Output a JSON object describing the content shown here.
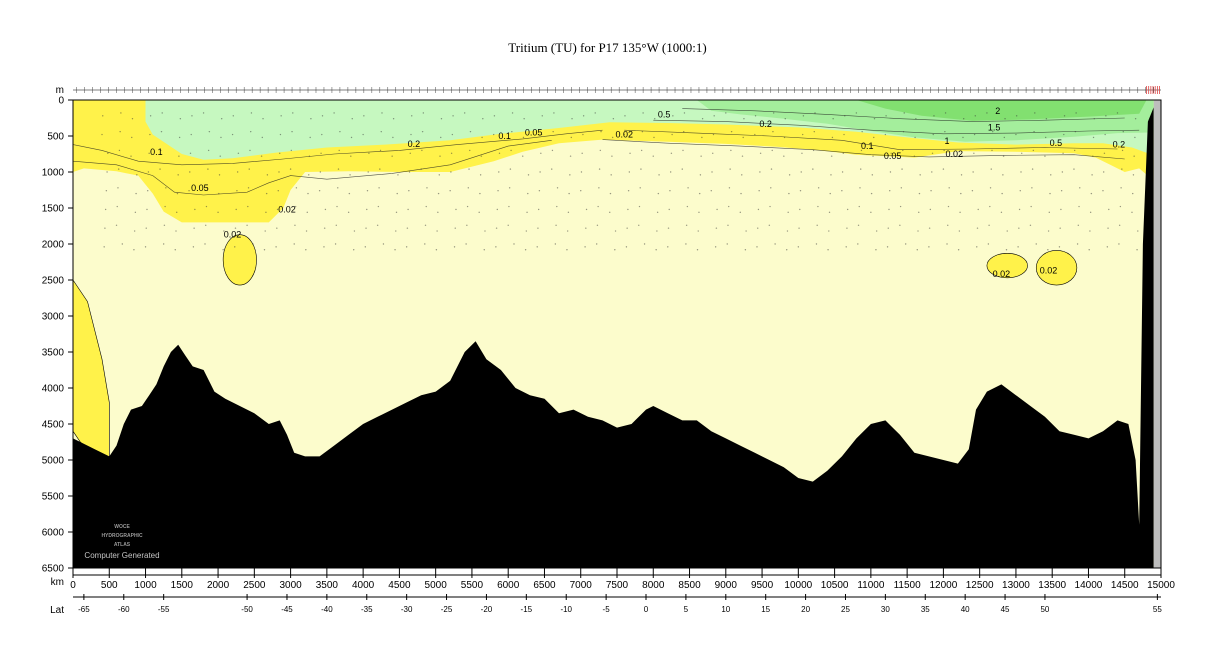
{
  "chart_data": {
    "type": "heatmap",
    "title": "Tritium (TU) for P17 135°W (1000:1)",
    "y_unit": "m",
    "x_unit": "km",
    "lat_unit": "Lat",
    "ylim": [
      6500,
      0
    ],
    "xlim": [
      0,
      15000
    ],
    "y_ticks": [
      0,
      500,
      1000,
      1500,
      2000,
      2500,
      3000,
      3500,
      4000,
      4500,
      5000,
      5500,
      6000,
      6500
    ],
    "x_ticks": [
      0,
      500,
      1000,
      1500,
      2000,
      2500,
      3000,
      3500,
      4000,
      4500,
      5000,
      5500,
      6000,
      6500,
      7000,
      7500,
      8000,
      8500,
      9000,
      9500,
      10000,
      10500,
      11000,
      11500,
      12000,
      12500,
      13000,
      13500,
      14000,
      14500,
      15000
    ],
    "lat_ticks": [
      {
        "label": "-65",
        "km": 150
      },
      {
        "label": "-60",
        "km": 700
      },
      {
        "label": "-55",
        "km": 1250
      },
      {
        "label": "-50",
        "km": 2400
      },
      {
        "label": "-45",
        "km": 2950
      },
      {
        "label": "-40",
        "km": 3500
      },
      {
        "label": "-35",
        "km": 4050
      },
      {
        "label": "-30",
        "km": 4600
      },
      {
        "label": "-25",
        "km": 5150
      },
      {
        "label": "-20",
        "km": 5700
      },
      {
        "label": "-15",
        "km": 6250
      },
      {
        "label": "-10",
        "km": 6800
      },
      {
        "label": "-5",
        "km": 7350
      },
      {
        "label": "0",
        "km": 7900
      },
      {
        "label": "5",
        "km": 8450
      },
      {
        "label": "10",
        "km": 9000
      },
      {
        "label": "15",
        "km": 9550
      },
      {
        "label": "20",
        "km": 10100
      },
      {
        "label": "25",
        "km": 10650
      },
      {
        "label": "30",
        "km": 11200
      },
      {
        "label": "35",
        "km": 11750
      },
      {
        "label": "40",
        "km": 12300
      },
      {
        "label": "45",
        "km": 12850
      },
      {
        "label": "50",
        "km": 13400
      },
      {
        "label": "55",
        "km": 14950
      }
    ],
    "contour_levels": [
      0.02,
      0.05,
      0.1,
      0.2,
      0.5,
      1,
      1.5,
      2
    ],
    "contour_labels": [
      {
        "text": "0.5",
        "km": 8150,
        "m": 200
      },
      {
        "text": "2",
        "km": 12750,
        "m": 150
      },
      {
        "text": "0.2",
        "km": 9550,
        "m": 330
      },
      {
        "text": "1.5",
        "km": 12700,
        "m": 380
      },
      {
        "text": "0.1",
        "km": 1150,
        "m": 720
      },
      {
        "text": "0.2",
        "km": 4700,
        "m": 610
      },
      {
        "text": "0.1",
        "km": 5950,
        "m": 500
      },
      {
        "text": "0.05",
        "km": 6350,
        "m": 450
      },
      {
        "text": "0.02",
        "km": 7600,
        "m": 480
      },
      {
        "text": "1",
        "km": 12050,
        "m": 570
      },
      {
        "text": "0.5",
        "km": 13550,
        "m": 600
      },
      {
        "text": "0.2",
        "km": 14420,
        "m": 620
      },
      {
        "text": "0.1",
        "km": 10950,
        "m": 640
      },
      {
        "text": "0.05",
        "km": 11300,
        "m": 780
      },
      {
        "text": "0.02",
        "km": 12150,
        "m": 750
      },
      {
        "text": "0.05",
        "km": 1750,
        "m": 1220
      },
      {
        "text": "0.02",
        "km": 2950,
        "m": 1520
      },
      {
        "text": "0.02",
        "km": 2200,
        "m": 1870
      },
      {
        "text": "0.02",
        "km": 12800,
        "m": 2420
      },
      {
        "text": "0.02",
        "km": 13450,
        "m": 2370
      }
    ],
    "colors": {
      "tr_low": "#fcfccc",
      "tr_002": "#fff24a",
      "tr_02": "#c6f8c0",
      "tr_1": "#a4ee9c",
      "tr_2": "#82e070",
      "bottom": "#000000",
      "land": "#bdbdbd"
    },
    "watermark": [
      "WOCE",
      "HYDROGRAPHIC",
      "ATLAS",
      "Computer Generated"
    ]
  }
}
